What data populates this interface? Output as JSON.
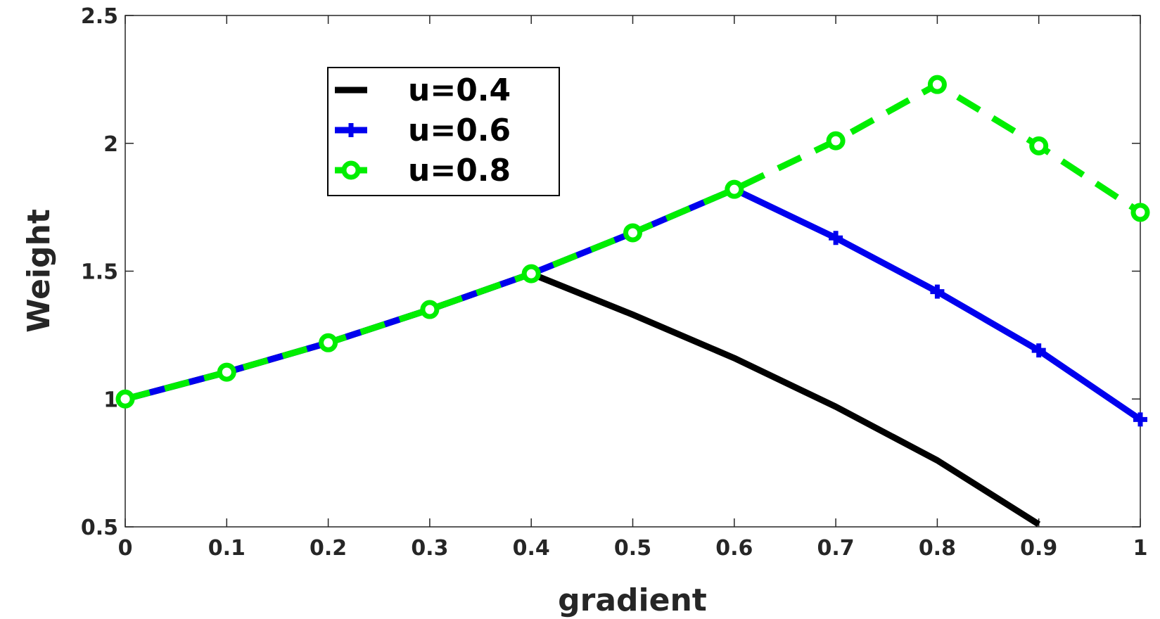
{
  "chart_data": {
    "type": "line",
    "xlabel": "gradient",
    "ylabel": "Weight",
    "xlim": [
      0,
      1
    ],
    "ylim": [
      0.5,
      2.5
    ],
    "xticks": [
      "0",
      "0.1",
      "0.2",
      "0.3",
      "0.4",
      "0.5",
      "0.6",
      "0.7",
      "0.8",
      "0.9",
      "1"
    ],
    "yticks": [
      "0.5",
      "1",
      "1.5",
      "2",
      "2.5"
    ],
    "legend_position": "top-left",
    "grid": false,
    "series": [
      {
        "name": "u=0.4",
        "color": "#000000",
        "line_style": "solid",
        "marker": "none",
        "x": [
          0,
          0.1,
          0.2,
          0.3,
          0.4,
          0.5,
          0.6,
          0.7,
          0.8,
          0.9
        ],
        "y": [
          1.0,
          1.105,
          1.22,
          1.35,
          1.49,
          1.33,
          1.16,
          0.97,
          0.76,
          0.51
        ]
      },
      {
        "name": "u=0.6",
        "color": "#0000ee",
        "line_style": "solid",
        "marker": "plus",
        "x": [
          0,
          0.1,
          0.2,
          0.3,
          0.4,
          0.5,
          0.6,
          0.7,
          0.8,
          0.9,
          1.0
        ],
        "y": [
          1.0,
          1.105,
          1.22,
          1.35,
          1.49,
          1.65,
          1.82,
          1.63,
          1.42,
          1.19,
          0.92
        ]
      },
      {
        "name": "u=0.8",
        "color": "#00ee00",
        "line_style": "dashed",
        "marker": "circle",
        "x": [
          0,
          0.1,
          0.2,
          0.3,
          0.4,
          0.5,
          0.6,
          0.7,
          0.8,
          0.9,
          1.0
        ],
        "y": [
          1.0,
          1.105,
          1.22,
          1.35,
          1.49,
          1.65,
          1.82,
          2.01,
          2.23,
          1.99,
          1.73
        ]
      }
    ]
  }
}
